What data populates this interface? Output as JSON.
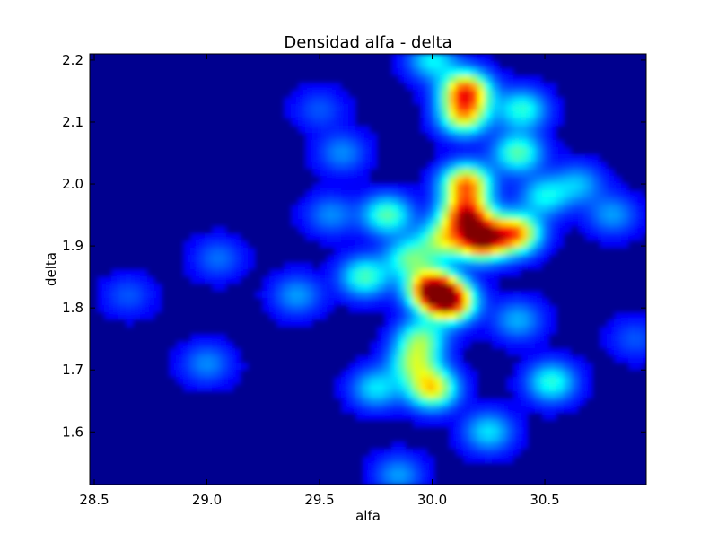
{
  "chart_data": {
    "type": "heatmap",
    "title": "Densidad alfa - delta",
    "xlabel": "alfa",
    "ylabel": "delta",
    "xlim": [
      28.48,
      30.95
    ],
    "ylim": [
      1.515,
      2.21
    ],
    "xticks": [
      28.5,
      29.0,
      29.5,
      30.0,
      30.5
    ],
    "xtick_labels": [
      "28.5",
      "29.0",
      "29.5",
      "30.0",
      "30.5"
    ],
    "yticks": [
      1.6,
      1.7,
      1.8,
      1.9,
      2.0,
      2.1,
      2.2
    ],
    "ytick_labels": [
      "1.6",
      "1.7",
      "1.8",
      "1.9",
      "2.0",
      "2.1",
      "2.2"
    ],
    "colormap": "jet",
    "value_range": [
      0,
      1
    ],
    "interpolation": "smooth",
    "grid": false,
    "legend": "none",
    "hotspots": [
      {
        "alfa": 30.15,
        "delta": 2.15,
        "density": 0.75
      },
      {
        "alfa": 30.14,
        "delta": 2.11,
        "density": 0.55
      },
      {
        "alfa": 30.15,
        "delta": 2.0,
        "density": 0.7
      },
      {
        "alfa": 30.15,
        "delta": 1.95,
        "density": 0.8
      },
      {
        "alfa": 30.22,
        "delta": 1.91,
        "density": 0.9
      },
      {
        "alfa": 30.37,
        "delta": 1.92,
        "density": 0.7
      },
      {
        "alfa": 30.05,
        "delta": 1.91,
        "density": 0.45
      },
      {
        "alfa": 30.0,
        "delta": 1.83,
        "density": 0.9
      },
      {
        "alfa": 30.08,
        "delta": 1.81,
        "density": 0.85
      },
      {
        "alfa": 30.0,
        "delta": 1.67,
        "density": 0.6
      },
      {
        "alfa": 29.92,
        "delta": 1.71,
        "density": 0.4
      },
      {
        "alfa": 29.95,
        "delta": 1.75,
        "density": 0.4
      },
      {
        "alfa": 29.8,
        "delta": 1.95,
        "density": 0.4
      },
      {
        "alfa": 29.7,
        "delta": 1.85,
        "density": 0.38
      },
      {
        "alfa": 29.9,
        "delta": 1.88,
        "density": 0.38
      },
      {
        "alfa": 30.38,
        "delta": 2.05,
        "density": 0.4
      },
      {
        "alfa": 30.4,
        "delta": 2.12,
        "density": 0.35
      },
      {
        "alfa": 30.5,
        "delta": 1.98,
        "density": 0.3
      },
      {
        "alfa": 30.53,
        "delta": 1.68,
        "density": 0.35
      },
      {
        "alfa": 30.0,
        "delta": 2.2,
        "density": 0.3
      },
      {
        "alfa": 30.25,
        "delta": 1.6,
        "density": 0.28
      },
      {
        "alfa": 29.75,
        "delta": 1.67,
        "density": 0.28
      },
      {
        "alfa": 29.85,
        "delta": 1.53,
        "density": 0.2
      },
      {
        "alfa": 30.65,
        "delta": 2.0,
        "density": 0.22
      },
      {
        "alfa": 30.8,
        "delta": 1.95,
        "density": 0.2
      },
      {
        "alfa": 30.38,
        "delta": 1.78,
        "density": 0.22
      },
      {
        "alfa": 29.4,
        "delta": 1.82,
        "density": 0.2
      },
      {
        "alfa": 29.05,
        "delta": 1.88,
        "density": 0.15
      },
      {
        "alfa": 29.0,
        "delta": 1.71,
        "density": 0.18
      },
      {
        "alfa": 28.65,
        "delta": 1.82,
        "density": 0.12
      },
      {
        "alfa": 29.55,
        "delta": 1.95,
        "density": 0.18
      },
      {
        "alfa": 29.6,
        "delta": 2.05,
        "density": 0.18
      },
      {
        "alfa": 29.5,
        "delta": 2.12,
        "density": 0.12
      },
      {
        "alfa": 30.9,
        "delta": 1.75,
        "density": 0.12
      }
    ]
  }
}
